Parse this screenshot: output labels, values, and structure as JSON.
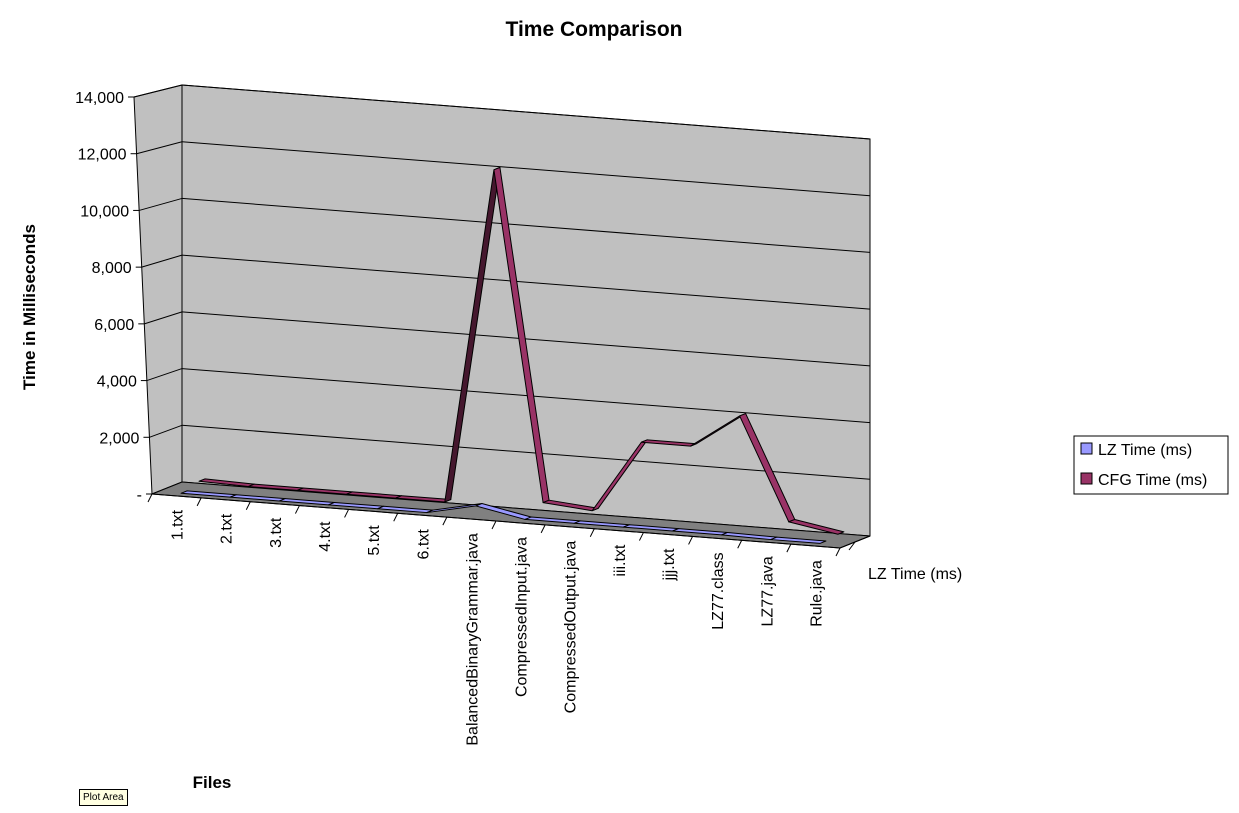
{
  "chart_data": {
    "type": "line",
    "title": "Time Comparison",
    "xlabel": "Files",
    "ylabel": "Time in Milliseconds",
    "depth_axis_label": "LZ Time (ms)",
    "ylim": [
      0,
      14000
    ],
    "yticks": [
      "-",
      "2,000",
      "4,000",
      "6,000",
      "8,000",
      "10,000",
      "12,000",
      "14,000"
    ],
    "categories": [
      "1.txt",
      "2.txt",
      "3.txt",
      "4.txt",
      "5.txt",
      "6.txt",
      "BalancedBinaryGrammar.java",
      "CompressedInput.java",
      "CompressedOutput.java",
      "iii.txt",
      "jjj.txt",
      "LZ77.class",
      "LZ77.java",
      "Rule.java"
    ],
    "series": [
      {
        "name": "LZ Time (ms)",
        "values": [
          30,
          30,
          30,
          30,
          30,
          30,
          400,
          60,
          60,
          60,
          60,
          60,
          30,
          30
        ],
        "color": "#9999ff"
      },
      {
        "name": "CFG Time (ms)",
        "values": [
          200,
          150,
          150,
          150,
          150,
          150,
          12000,
          400,
          250,
          2800,
          2800,
          4000,
          400,
          100
        ],
        "color": "#993366"
      }
    ],
    "grid": true,
    "legend": "right",
    "colors": {
      "walls": "#c0c0c0",
      "floor": "#808080",
      "lines": "#000000"
    }
  },
  "tooltip": {
    "text": "Plot Area"
  }
}
